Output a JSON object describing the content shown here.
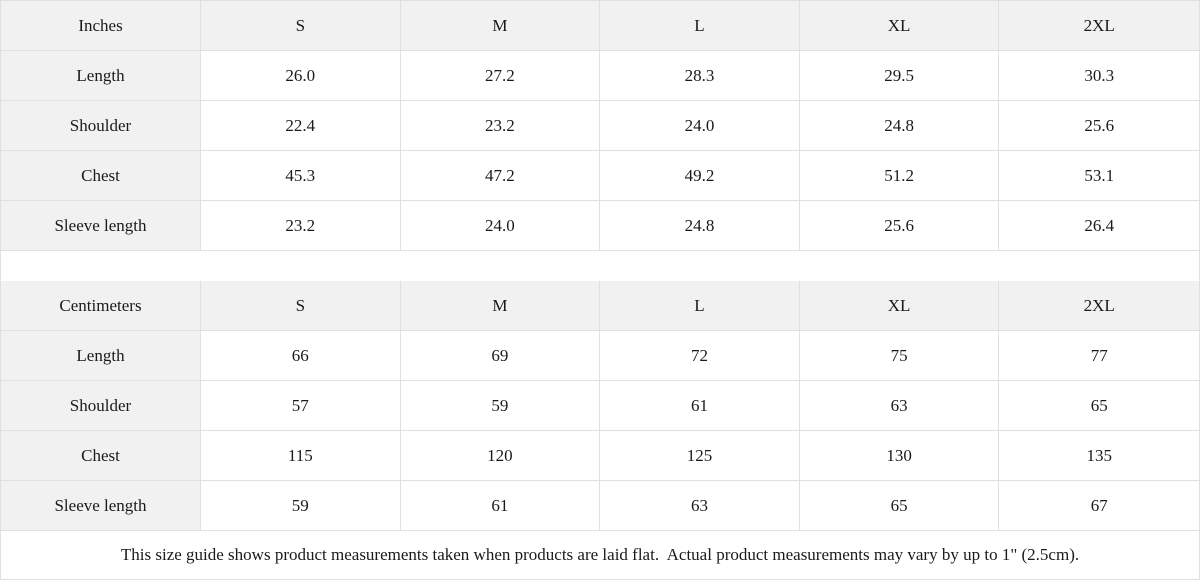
{
  "colors": {
    "header_bg": "#f1f1f1",
    "border": "#e0e0e0",
    "text": "#1a1a1a",
    "background": "#ffffff"
  },
  "size_guide": {
    "tables": [
      {
        "unit": "Inches",
        "sizes": [
          "S",
          "M",
          "L",
          "XL",
          "2XL"
        ],
        "rows": [
          {
            "label": "Length",
            "values": [
              "26.0",
              "27.2",
              "28.3",
              "29.5",
              "30.3"
            ]
          },
          {
            "label": "Shoulder",
            "values": [
              "22.4",
              "23.2",
              "24.0",
              "24.8",
              "25.6"
            ]
          },
          {
            "label": "Chest",
            "values": [
              "45.3",
              "47.2",
              "49.2",
              "51.2",
              "53.1"
            ]
          },
          {
            "label": "Sleeve length",
            "values": [
              "23.2",
              "24.0",
              "24.8",
              "25.6",
              "26.4"
            ]
          }
        ]
      },
      {
        "unit": "Centimeters",
        "sizes": [
          "S",
          "M",
          "L",
          "XL",
          "2XL"
        ],
        "rows": [
          {
            "label": "Length",
            "values": [
              "66",
              "69",
              "72",
              "75",
              "77"
            ]
          },
          {
            "label": "Shoulder",
            "values": [
              "57",
              "59",
              "61",
              "63",
              "65"
            ]
          },
          {
            "label": "Chest",
            "values": [
              "115",
              "120",
              "125",
              "130",
              "135"
            ]
          },
          {
            "label": "Sleeve length",
            "values": [
              "59",
              "61",
              "63",
              "65",
              "67"
            ]
          }
        ]
      }
    ],
    "note": "This size guide shows product measurements taken when products are laid flat.  Actual product measurements may vary by up to 1\" (2.5cm)."
  }
}
